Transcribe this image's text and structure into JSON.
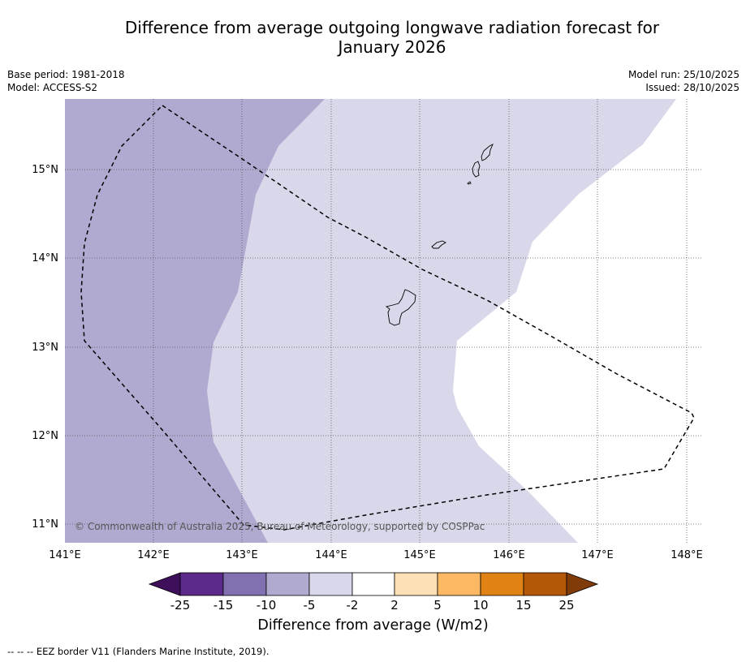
{
  "title_line1": "Difference from average outgoing longwave radiation forecast for",
  "title_line2": "January 2026",
  "meta_left": {
    "base_period": "Base period: 1981-2018",
    "model": "Model: ACCESS-S2"
  },
  "meta_right": {
    "model_run": "Model run: 25/10/2025",
    "issued": "Issued: 28/10/2025"
  },
  "map": {
    "lon_labels": [
      "141°E",
      "142°E",
      "143°E",
      "144°E",
      "145°E",
      "146°E",
      "147°E",
      "148°E"
    ],
    "lat_labels": [
      "15°N",
      "14°N",
      "13°N",
      "12°N",
      "11°N"
    ],
    "copyright": "© Commonwealth of Australia 2025, Bureau of Meteorology, supported by COSPPac"
  },
  "colorbar": {
    "labels": [
      "-25",
      "-15",
      "-10",
      "-5",
      "-2",
      "2",
      "5",
      "10",
      "15",
      "25"
    ],
    "colors": [
      "#3f0f5c",
      "#5b2a8a",
      "#8171b0",
      "#b0aad1",
      "#d8d8ea",
      "#ffffff",
      "#fde0b5",
      "#fdb863",
      "#e08214",
      "#b35806",
      "#7f3b08"
    ],
    "title": "Difference from average (W/m2)"
  },
  "footnote": "--  --  -- EEZ border V11 (Flanders Marine Institute, 2019)."
}
